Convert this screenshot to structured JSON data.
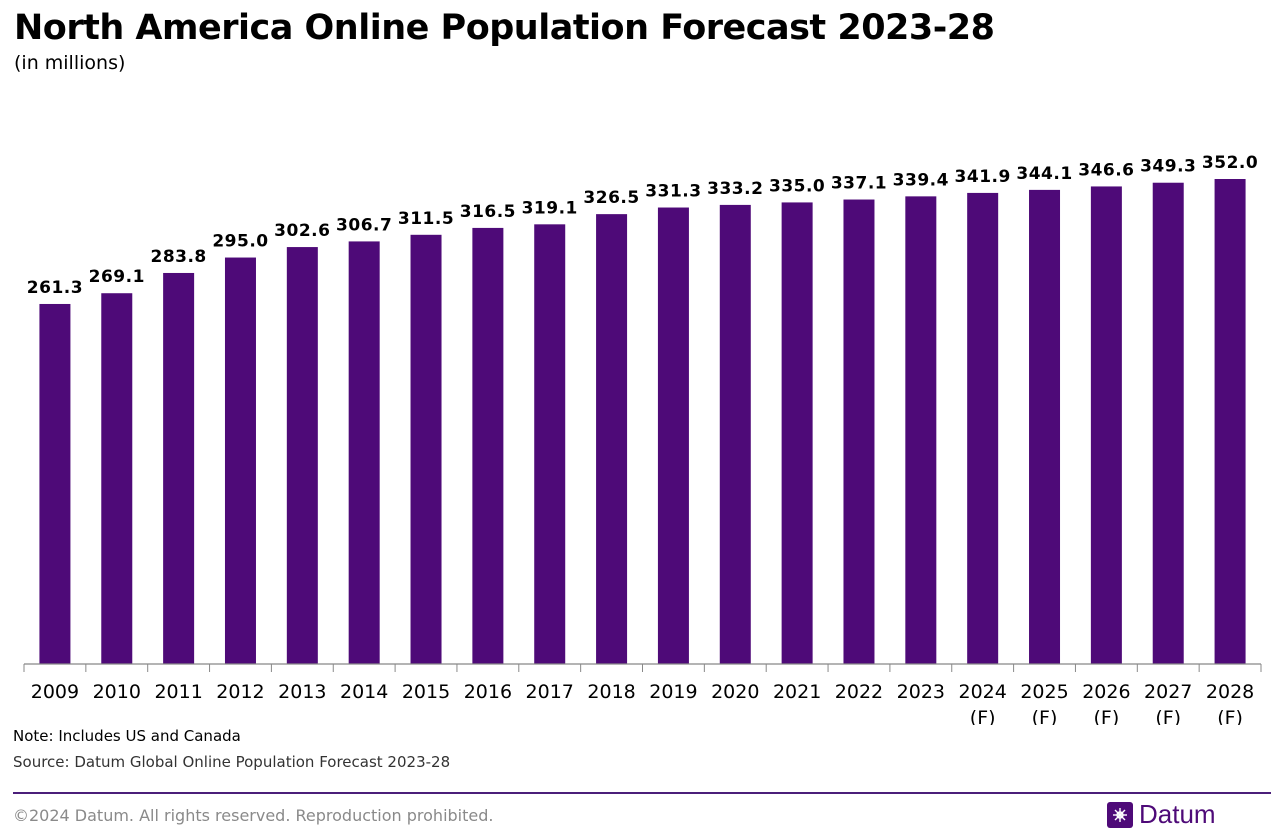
{
  "header": {
    "title": "North America Online Population Forecast 2023-28",
    "subtitle": "(in millions)"
  },
  "chart_data": {
    "type": "bar",
    "categories": [
      "2009",
      "2010",
      "2011",
      "2012",
      "2013",
      "2014",
      "2015",
      "2016",
      "2017",
      "2018",
      "2019",
      "2020",
      "2021",
      "2022",
      "2023",
      "2024\n(F)",
      "2025\n(F)",
      "2026\n(F)",
      "2027\n(F)",
      "2028\n(F)"
    ],
    "values": [
      261.3,
      269.1,
      283.8,
      295.0,
      302.6,
      306.7,
      311.5,
      316.5,
      319.1,
      326.5,
      331.3,
      333.2,
      335.0,
      337.1,
      339.4,
      341.9,
      344.1,
      346.6,
      349.3,
      352.0
    ],
    "data_labels": [
      "261.3",
      "269.1",
      "283.8",
      "295.0",
      "302.6",
      "306.7",
      "311.5",
      "316.5",
      "319.1",
      "326.5",
      "331.3",
      "333.2",
      "335.0",
      "337.1",
      "339.4",
      "341.9",
      "344.1",
      "346.6",
      "349.3",
      "352.0"
    ],
    "ylim": [
      0,
      352.0
    ],
    "bar_color": "#4e0a78",
    "grid": false,
    "legend": "none"
  },
  "footer": {
    "note": "Note: Includes US and Canada",
    "source": "Source: Datum Global Online Population Forecast 2023-28",
    "copyright": "©2024 Datum. All rights reserved. Reproduction prohibited.",
    "brand": "Datum",
    "brand_icon": "datum-logo-icon",
    "rule_color": "#4b1f7a"
  }
}
